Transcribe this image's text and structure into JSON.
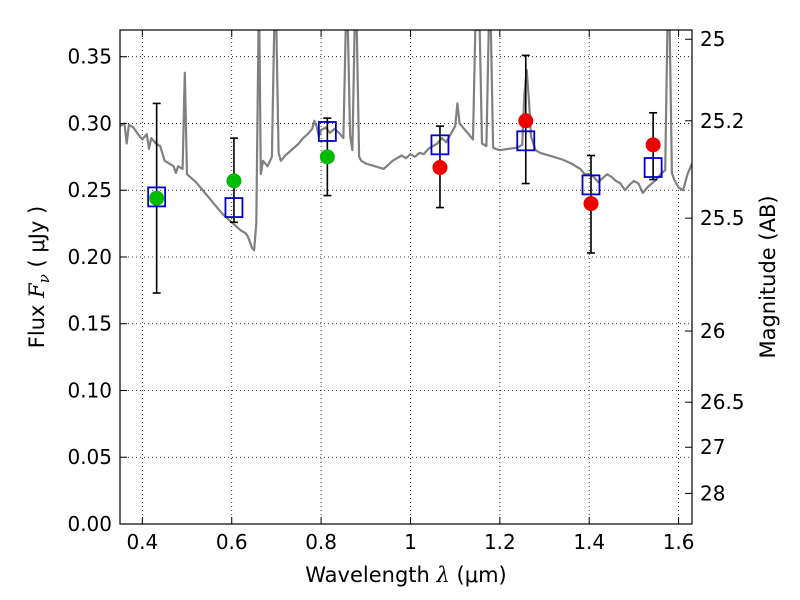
{
  "chart_data": {
    "type": "scatter",
    "title": "",
    "xlabel_prefix": "Wavelength",
    "xlabel_symbol": "λ",
    "xlabel_unit": "(μm)",
    "ylabel_prefix": "Flux",
    "ylabel_symbol": "F",
    "ylabel_subscript": "ν",
    "ylabel_unit": "( μJy )",
    "ylabel_right": "Magnitude (AB)",
    "xlim": [
      0.35,
      1.63
    ],
    "ylim": [
      0.0,
      0.37
    ],
    "grid": true,
    "x_ticks": [
      {
        "value": 0.4,
        "label": "0.4"
      },
      {
        "value": 0.6,
        "label": "0.6"
      },
      {
        "value": 0.8,
        "label": "0.8"
      },
      {
        "value": 1.0,
        "label": "1"
      },
      {
        "value": 1.2,
        "label": "1.2"
      },
      {
        "value": 1.4,
        "label": "1.4"
      },
      {
        "value": 1.6,
        "label": "1.6"
      }
    ],
    "y_ticks": [
      {
        "value": 0.0,
        "label": "0.00"
      },
      {
        "value": 0.05,
        "label": "0.05"
      },
      {
        "value": 0.1,
        "label": "0.10"
      },
      {
        "value": 0.15,
        "label": "0.15"
      },
      {
        "value": 0.2,
        "label": "0.20"
      },
      {
        "value": 0.25,
        "label": "0.25"
      },
      {
        "value": 0.3,
        "label": "0.30"
      },
      {
        "value": 0.35,
        "label": "0.35"
      }
    ],
    "right_ticks": [
      {
        "label": "25",
        "flux": 0.3631
      },
      {
        "label": "25.2",
        "flux": 0.302
      },
      {
        "label": "25.5",
        "flux": 0.2291
      },
      {
        "label": "26",
        "flux": 0.1445
      },
      {
        "label": "26.5",
        "flux": 0.0912
      },
      {
        "label": "27",
        "flux": 0.0575
      },
      {
        "label": "28",
        "flux": 0.0229
      }
    ],
    "series": [
      {
        "kind": "line",
        "color": "#808080",
        "points": [
          [
            0.35,
            0.298
          ],
          [
            0.36,
            0.3
          ],
          [
            0.365,
            0.285
          ],
          [
            0.37,
            0.299
          ],
          [
            0.38,
            0.297
          ],
          [
            0.39,
            0.292
          ],
          [
            0.4,
            0.288
          ],
          [
            0.41,
            0.292
          ],
          [
            0.415,
            0.281
          ],
          [
            0.42,
            0.289
          ],
          [
            0.43,
            0.285
          ],
          [
            0.44,
            0.283
          ],
          [
            0.45,
            0.272
          ],
          [
            0.46,
            0.27
          ],
          [
            0.47,
            0.268
          ],
          [
            0.475,
            0.263
          ],
          [
            0.48,
            0.268
          ],
          [
            0.49,
            0.266
          ],
          [
            0.495,
            0.338
          ],
          [
            0.5,
            0.262
          ],
          [
            0.51,
            0.259
          ],
          [
            0.52,
            0.256
          ],
          [
            0.53,
            0.252
          ],
          [
            0.54,
            0.248
          ],
          [
            0.55,
            0.244
          ],
          [
            0.56,
            0.24
          ],
          [
            0.57,
            0.236
          ],
          [
            0.58,
            0.232
          ],
          [
            0.59,
            0.229
          ],
          [
            0.6,
            0.226
          ],
          [
            0.61,
            0.223
          ],
          [
            0.62,
            0.22
          ],
          [
            0.63,
            0.218
          ],
          [
            0.635,
            0.216
          ],
          [
            0.64,
            0.212
          ],
          [
            0.645,
            0.207
          ],
          [
            0.65,
            0.205
          ],
          [
            0.655,
            0.225
          ],
          [
            0.66,
            0.37
          ],
          [
            0.662,
            0.37
          ],
          [
            0.665,
            0.262
          ],
          [
            0.67,
            0.272
          ],
          [
            0.68,
            0.268
          ],
          [
            0.69,
            0.275
          ],
          [
            0.695,
            0.37
          ],
          [
            0.7,
            0.37
          ],
          [
            0.705,
            0.278
          ],
          [
            0.71,
            0.272
          ],
          [
            0.72,
            0.276
          ],
          [
            0.73,
            0.279
          ],
          [
            0.74,
            0.282
          ],
          [
            0.75,
            0.285
          ],
          [
            0.76,
            0.289
          ],
          [
            0.77,
            0.292
          ],
          [
            0.78,
            0.296
          ],
          [
            0.785,
            0.302
          ],
          [
            0.79,
            0.298
          ],
          [
            0.795,
            0.29
          ],
          [
            0.8,
            0.295
          ],
          [
            0.81,
            0.297
          ],
          [
            0.82,
            0.293
          ],
          [
            0.83,
            0.296
          ],
          [
            0.84,
            0.293
          ],
          [
            0.85,
            0.289
          ],
          [
            0.855,
            0.37
          ],
          [
            0.86,
            0.37
          ],
          [
            0.865,
            0.291
          ],
          [
            0.87,
            0.28
          ],
          [
            0.875,
            0.37
          ],
          [
            0.88,
            0.37
          ],
          [
            0.885,
            0.275
          ],
          [
            0.89,
            0.272
          ],
          [
            0.9,
            0.27
          ],
          [
            0.92,
            0.268
          ],
          [
            0.94,
            0.266
          ],
          [
            0.96,
            0.272
          ],
          [
            0.98,
            0.276
          ],
          [
            0.99,
            0.274
          ],
          [
            1.0,
            0.277
          ],
          [
            1.01,
            0.275
          ],
          [
            1.02,
            0.278
          ],
          [
            1.03,
            0.277
          ],
          [
            1.04,
            0.281
          ],
          [
            1.05,
            0.283
          ],
          [
            1.06,
            0.285
          ],
          [
            1.07,
            0.289
          ],
          [
            1.08,
            0.286
          ],
          [
            1.09,
            0.292
          ],
          [
            1.1,
            0.298
          ],
          [
            1.105,
            0.315
          ],
          [
            1.11,
            0.3
          ],
          [
            1.12,
            0.296
          ],
          [
            1.13,
            0.292
          ],
          [
            1.14,
            0.288
          ],
          [
            1.145,
            0.37
          ],
          [
            1.15,
            0.37
          ],
          [
            1.155,
            0.37
          ],
          [
            1.16,
            0.285
          ],
          [
            1.17,
            0.283
          ],
          [
            1.175,
            0.37
          ],
          [
            1.18,
            0.37
          ],
          [
            1.185,
            0.282
          ],
          [
            1.19,
            0.281
          ],
          [
            1.2,
            0.28
          ],
          [
            1.22,
            0.281
          ],
          [
            1.24,
            0.282
          ],
          [
            1.25,
            0.284
          ],
          [
            1.255,
            0.322
          ],
          [
            1.26,
            0.34
          ],
          [
            1.265,
            0.318
          ],
          [
            1.27,
            0.29
          ],
          [
            1.28,
            0.28
          ],
          [
            1.29,
            0.278
          ],
          [
            1.3,
            0.277
          ],
          [
            1.32,
            0.275
          ],
          [
            1.34,
            0.273
          ],
          [
            1.36,
            0.27
          ],
          [
            1.38,
            0.266
          ],
          [
            1.39,
            0.262
          ],
          [
            1.4,
            0.262
          ],
          [
            1.41,
            0.26
          ],
          [
            1.42,
            0.256
          ],
          [
            1.43,
            0.259
          ],
          [
            1.44,
            0.262
          ],
          [
            1.45,
            0.26
          ],
          [
            1.46,
            0.257
          ],
          [
            1.47,
            0.255
          ],
          [
            1.48,
            0.25
          ],
          [
            1.49,
            0.254
          ],
          [
            1.5,
            0.257
          ],
          [
            1.51,
            0.255
          ],
          [
            1.52,
            0.248
          ],
          [
            1.53,
            0.252
          ],
          [
            1.54,
            0.255
          ],
          [
            1.55,
            0.258
          ],
          [
            1.56,
            0.262
          ],
          [
            1.57,
            0.265
          ],
          [
            1.575,
            0.37
          ],
          [
            1.58,
            0.37
          ],
          [
            1.585,
            0.263
          ],
          [
            1.59,
            0.258
          ],
          [
            1.6,
            0.252
          ],
          [
            1.61,
            0.25
          ],
          [
            1.62,
            0.262
          ],
          [
            1.63,
            0.27
          ]
        ]
      },
      {
        "kind": "errorbar",
        "color": "#000000",
        "bars": [
          {
            "x": 0.432,
            "low": 0.173,
            "high": 0.315
          },
          {
            "x": 0.605,
            "low": 0.226,
            "high": 0.289
          },
          {
            "x": 0.814,
            "low": 0.246,
            "high": 0.304
          },
          {
            "x": 1.066,
            "low": 0.237,
            "high": 0.298
          },
          {
            "x": 1.258,
            "low": 0.255,
            "high": 0.351
          },
          {
            "x": 1.404,
            "low": 0.203,
            "high": 0.276
          },
          {
            "x": 1.543,
            "low": 0.258,
            "high": 0.308
          }
        ]
      },
      {
        "kind": "markers",
        "shape": "square",
        "color": "#0000cc",
        "points": [
          [
            0.432,
            0.245
          ],
          [
            0.605,
            0.237
          ],
          [
            0.814,
            0.294
          ],
          [
            1.066,
            0.284
          ],
          [
            1.258,
            0.287
          ],
          [
            1.404,
            0.254
          ],
          [
            1.543,
            0.267
          ]
        ]
      },
      {
        "kind": "markers",
        "shape": "circle",
        "color": "#00bb00",
        "points": [
          [
            0.432,
            0.244
          ],
          [
            0.605,
            0.257
          ],
          [
            0.814,
            0.275
          ]
        ]
      },
      {
        "kind": "markers",
        "shape": "circle",
        "color": "#ee0000",
        "points": [
          [
            1.066,
            0.267
          ],
          [
            1.258,
            0.302
          ],
          [
            1.404,
            0.24
          ],
          [
            1.543,
            0.284
          ]
        ]
      }
    ]
  }
}
